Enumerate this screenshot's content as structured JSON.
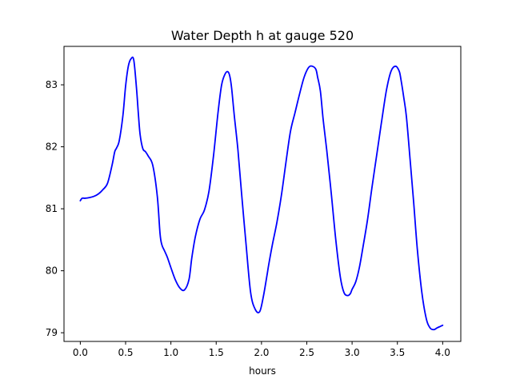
{
  "chart_data": {
    "type": "line",
    "title": "Water Depth h at gauge 520",
    "xlabel": "hours",
    "ylabel": "",
    "xlim": [
      -0.18,
      4.2
    ],
    "ylim": [
      78.86,
      83.62
    ],
    "xticks": [
      0.0,
      0.5,
      1.0,
      1.5,
      2.0,
      2.5,
      3.0,
      3.5,
      4.0
    ],
    "xtick_labels": [
      "0.0",
      "0.5",
      "1.0",
      "1.5",
      "2.0",
      "2.5",
      "3.0",
      "3.5",
      "4.0"
    ],
    "yticks": [
      79,
      80,
      81,
      82,
      83
    ],
    "ytick_labels": [
      "79",
      "80",
      "81",
      "82",
      "83"
    ],
    "grid": false,
    "legend": "none",
    "line_color": "#0000ff",
    "series": [
      {
        "x": [
          0.0,
          0.02,
          0.05,
          0.1,
          0.15,
          0.2,
          0.25,
          0.3,
          0.35,
          0.38,
          0.4,
          0.43,
          0.47,
          0.5,
          0.53,
          0.56,
          0.59,
          0.62,
          0.64,
          0.66,
          0.69,
          0.72,
          0.75,
          0.8,
          0.85,
          0.88,
          0.9,
          0.93,
          0.96,
          1.0,
          1.05,
          1.1,
          1.15,
          1.2,
          1.23,
          1.27,
          1.32,
          1.37,
          1.42,
          1.47,
          1.52,
          1.56,
          1.6,
          1.63,
          1.65,
          1.67,
          1.7,
          1.74,
          1.78,
          1.83,
          1.88,
          1.93,
          1.98,
          2.02,
          2.06,
          2.08,
          2.12,
          2.17,
          2.22,
          2.27,
          2.32,
          2.37,
          2.42,
          2.47,
          2.52,
          2.56,
          2.6,
          2.62,
          2.65,
          2.68,
          2.72,
          2.77,
          2.82,
          2.87,
          2.91,
          2.95,
          2.98,
          3.0,
          3.04,
          3.08,
          3.12,
          3.17,
          3.22,
          3.28,
          3.33,
          3.38,
          3.43,
          3.48,
          3.52,
          3.54,
          3.57,
          3.6,
          3.64,
          3.68,
          3.72,
          3.77,
          3.82,
          3.86,
          3.9,
          3.94,
          3.97,
          4.0
        ],
        "y": [
          81.13,
          81.17,
          81.17,
          81.18,
          81.2,
          81.24,
          81.31,
          81.41,
          81.7,
          81.92,
          81.98,
          82.1,
          82.5,
          82.98,
          83.3,
          83.42,
          83.4,
          82.95,
          82.55,
          82.2,
          81.97,
          81.92,
          81.85,
          81.7,
          81.2,
          80.6,
          80.42,
          80.32,
          80.22,
          80.05,
          79.85,
          79.72,
          79.69,
          79.86,
          80.2,
          80.55,
          80.83,
          80.98,
          81.28,
          81.85,
          82.55,
          83.0,
          83.18,
          83.21,
          83.14,
          82.95,
          82.5,
          81.95,
          81.25,
          80.42,
          79.65,
          79.38,
          79.34,
          79.58,
          79.92,
          80.1,
          80.42,
          80.78,
          81.22,
          81.75,
          82.25,
          82.55,
          82.85,
          83.12,
          83.28,
          83.3,
          83.25,
          83.12,
          82.9,
          82.45,
          81.95,
          81.25,
          80.5,
          79.9,
          79.65,
          79.6,
          79.63,
          79.7,
          79.82,
          80.05,
          80.38,
          80.82,
          81.35,
          81.95,
          82.45,
          82.92,
          83.22,
          83.3,
          83.22,
          83.08,
          82.8,
          82.48,
          81.8,
          81.1,
          80.35,
          79.65,
          79.22,
          79.08,
          79.05,
          79.08,
          79.1,
          79.12
        ]
      }
    ]
  }
}
